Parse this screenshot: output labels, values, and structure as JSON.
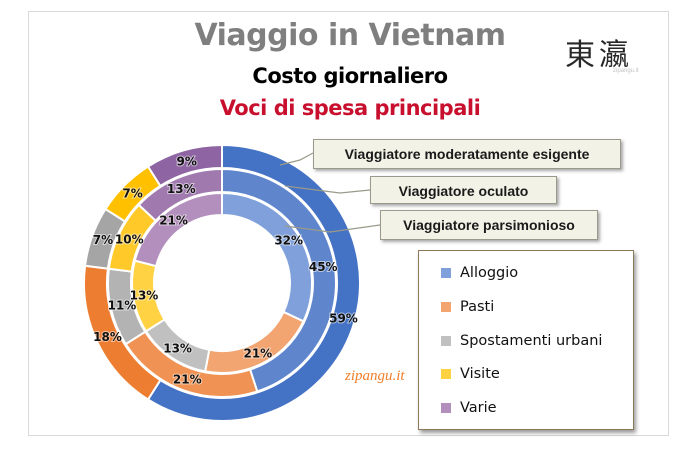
{
  "header": {
    "title": "Viaggio in Vietnam",
    "subtitle": "Costo giornaliero",
    "subtitle2": "Voci di spesa principali",
    "logo_text": "東瀛",
    "logo_caption": "zipangu.it"
  },
  "watermark": "zipangu.it",
  "callouts": [
    "Viaggiatore moderatamente esigente",
    "Viaggiatore oculato",
    "Viaggiatore parsimonioso"
  ],
  "legend": [
    {
      "label": "Alloggio",
      "color": "#7fa0da"
    },
    {
      "label": "Pasti",
      "color": "#f2a571"
    },
    {
      "label": "Spostamenti urbani",
      "color": "#c0c0c0"
    },
    {
      "label": "Visite",
      "color": "#ffd243"
    },
    {
      "label": "Varie",
      "color": "#b38fbd"
    }
  ],
  "chart_data": {
    "type": "pie",
    "subtype": "multi-ring donut",
    "title": "Viaggio in Vietnam",
    "subtitle": "Costo giornaliero - Voci di spesa principali",
    "categories": [
      "Alloggio",
      "Pasti",
      "Spostamenti urbani",
      "Visite",
      "Varie"
    ],
    "series": [
      {
        "name": "Viaggiatore moderatamente esigente",
        "ring": "outer",
        "values": [
          59,
          18,
          7,
          7,
          9
        ],
        "colors": [
          "#4472c4",
          "#ed7d31",
          "#a5a5a5",
          "#ffc000",
          "#8e65a2"
        ]
      },
      {
        "name": "Viaggiatore oculato",
        "ring": "middle",
        "values": [
          45,
          21,
          11,
          10,
          13
        ],
        "colors": [
          "#5f86cd",
          "#f09253",
          "#b3b3b3",
          "#ffc929",
          "#a07aaf"
        ]
      },
      {
        "name": "Viaggiatore parsimonioso",
        "ring": "inner",
        "values": [
          32,
          21,
          13,
          13,
          21
        ],
        "colors": [
          "#7fa0da",
          "#f2a571",
          "#c0c0c0",
          "#ffd243",
          "#b38fbd"
        ]
      }
    ],
    "unit": "%",
    "legend_position": "right"
  }
}
